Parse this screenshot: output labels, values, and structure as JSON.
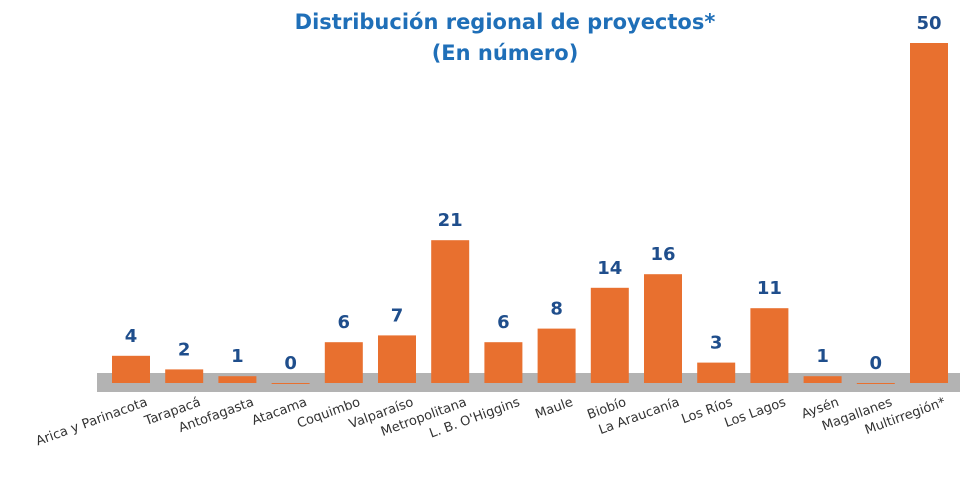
{
  "chart_data": {
    "type": "bar",
    "title": "Distribución regional de proyectos*",
    "subtitle": "(En número)",
    "categories": [
      "Arica y Parinacota",
      "Tarapacá",
      "Antofagasta",
      "Atacama",
      "Coquimbo",
      "Valparaíso",
      "Metropolitana",
      "L. B. O'Higgins",
      "Maule",
      "Biobío",
      "La Araucanía",
      "Los Ríos",
      "Los Lagos",
      "Aysén",
      "Magallanes",
      "Multirregión*"
    ],
    "values": [
      4,
      2,
      1,
      0,
      6,
      7,
      21,
      6,
      8,
      14,
      16,
      3,
      11,
      1,
      0,
      50
    ],
    "color": "#e8702f"
  }
}
